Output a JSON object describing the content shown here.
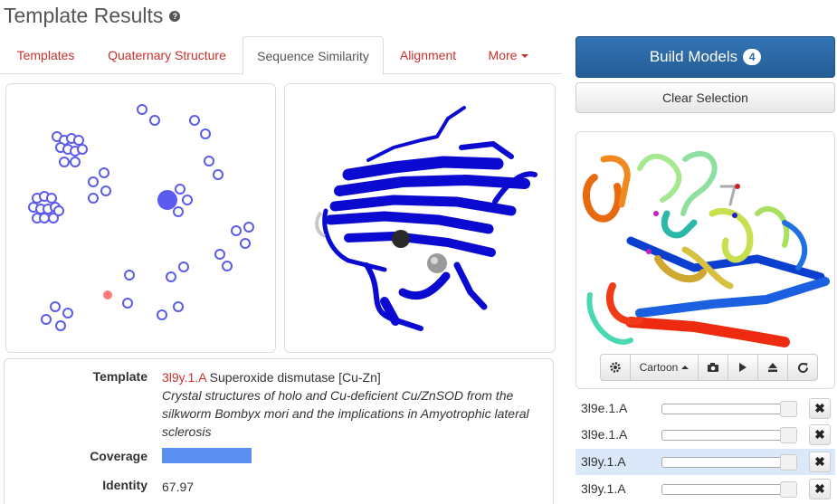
{
  "page": {
    "title": "Template Results",
    "help_icon": "question-circle-icon"
  },
  "tabs": [
    {
      "label": "Templates"
    },
    {
      "label": "Quaternary Structure"
    },
    {
      "label": "Sequence Similarity",
      "active": true
    },
    {
      "label": "Alignment"
    },
    {
      "label": "More"
    }
  ],
  "template_info": {
    "template_label": "Template",
    "template_id": "3l9y.1.A",
    "template_name": "Superoxide dismutase [Cu-Zn]",
    "template_title": "Crystal structures of holo and Cu-deficient Cu/ZnSOD from the silkworm Bombyx mori and the implications in Amyotrophic lateral sclerosis",
    "coverage_label": "Coverage",
    "coverage_fraction": 0.33,
    "identity_label": "Identity",
    "identity_value": "67.97"
  },
  "actions": {
    "build_models_label": "Build Models",
    "build_models_count": "4",
    "clear_selection_label": "Clear Selection"
  },
  "viewer_toolbar": {
    "settings_icon": "gear-icon",
    "style_label": "Cartoon",
    "camera_icon": "camera-icon",
    "play_icon": "play-icon",
    "eject_icon": "eject-icon",
    "reset_icon": "refresh-icon"
  },
  "models": [
    {
      "name": "3l9e.1.A",
      "selected": false
    },
    {
      "name": "3l9e.1.A",
      "selected": false
    },
    {
      "name": "3l9y.1.A",
      "selected": true
    },
    {
      "name": "3l9y.1.A",
      "selected": false
    }
  ],
  "colors": {
    "accent": "#c9302c",
    "primary": "#2b6aa8",
    "scatter_node": "#5b5bf0",
    "scatter_highlight": "#ff7b7b",
    "coverage": "#5b8ff0",
    "selected_row": "#dbe8f9"
  }
}
